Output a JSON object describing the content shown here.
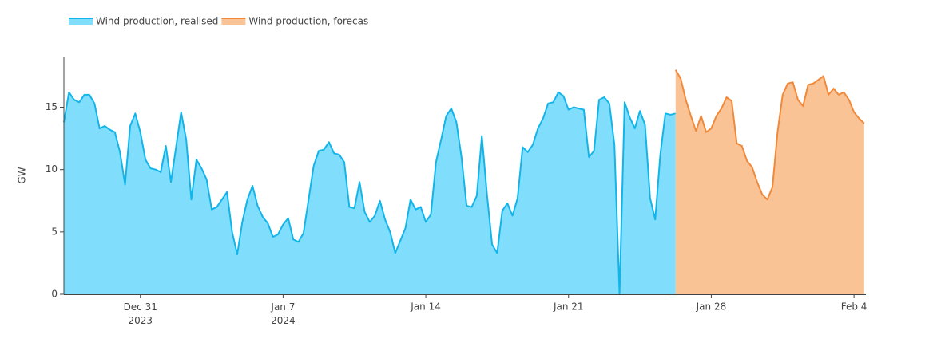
{
  "chart_data": {
    "type": "area",
    "y_label": "GW",
    "ylim": [
      0,
      19
    ],
    "yticks": [
      0,
      5,
      10,
      15
    ],
    "xlim": [
      "2023-12-27T06:00",
      "2024-02-04T14:00"
    ],
    "xticks": [
      {
        "value": "2023-12-31T00:00",
        "label": "Dec 31\n2023"
      },
      {
        "value": "2024-01-07T00:00",
        "label": "Jan 7\n2024"
      },
      {
        "value": "2024-01-14T00:00",
        "label": "Jan 14"
      },
      {
        "value": "2024-01-21T00:00",
        "label": "Jan 21"
      },
      {
        "value": "2024-01-28T00:00",
        "label": "Jan 28"
      },
      {
        "value": "2024-02-04T00:00",
        "label": "Feb 4"
      }
    ],
    "grid": false,
    "legend": "top-left",
    "x": [
      "2023-12-27T06:00",
      "2023-12-27T12:00",
      "2023-12-27T18:00",
      "2023-12-28T00:00",
      "2023-12-28T06:00",
      "2023-12-28T12:00",
      "2023-12-28T18:00",
      "2023-12-29T00:00",
      "2023-12-29T06:00",
      "2023-12-29T12:00",
      "2023-12-29T18:00",
      "2023-12-30T00:00",
      "2023-12-30T06:00",
      "2023-12-30T12:00",
      "2023-12-30T18:00",
      "2023-12-31T00:00",
      "2023-12-31T06:00",
      "2023-12-31T12:00",
      "2023-12-31T18:00",
      "2024-01-01T00:00",
      "2024-01-01T06:00",
      "2024-01-01T12:00",
      "2024-01-01T18:00",
      "2024-01-02T00:00",
      "2024-01-02T06:00",
      "2024-01-02T12:00",
      "2024-01-02T18:00",
      "2024-01-03T00:00",
      "2024-01-03T06:00",
      "2024-01-03T12:00",
      "2024-01-03T18:00",
      "2024-01-04T00:00",
      "2024-01-04T06:00",
      "2024-01-04T12:00",
      "2024-01-04T18:00",
      "2024-01-05T00:00",
      "2024-01-05T06:00",
      "2024-01-05T12:00",
      "2024-01-05T18:00",
      "2024-01-06T00:00",
      "2024-01-06T06:00",
      "2024-01-06T12:00",
      "2024-01-06T18:00",
      "2024-01-07T00:00",
      "2024-01-07T06:00",
      "2024-01-07T12:00",
      "2024-01-07T18:00",
      "2024-01-08T00:00",
      "2024-01-08T06:00",
      "2024-01-08T12:00",
      "2024-01-08T18:00",
      "2024-01-09T00:00",
      "2024-01-09T06:00",
      "2024-01-09T12:00",
      "2024-01-09T18:00",
      "2024-01-10T00:00",
      "2024-01-10T06:00",
      "2024-01-10T12:00",
      "2024-01-10T18:00",
      "2024-01-11T00:00",
      "2024-01-11T06:00",
      "2024-01-11T12:00",
      "2024-01-11T18:00",
      "2024-01-12T00:00",
      "2024-01-12T06:00",
      "2024-01-12T12:00",
      "2024-01-12T18:00",
      "2024-01-13T00:00",
      "2024-01-13T06:00",
      "2024-01-13T12:00",
      "2024-01-13T18:00",
      "2024-01-14T00:00",
      "2024-01-14T06:00",
      "2024-01-14T12:00",
      "2024-01-14T18:00",
      "2024-01-15T00:00",
      "2024-01-15T06:00",
      "2024-01-15T12:00",
      "2024-01-15T18:00",
      "2024-01-16T00:00",
      "2024-01-16T06:00",
      "2024-01-16T12:00",
      "2024-01-16T18:00",
      "2024-01-17T00:00",
      "2024-01-17T06:00",
      "2024-01-17T12:00",
      "2024-01-17T18:00",
      "2024-01-18T00:00",
      "2024-01-18T06:00",
      "2024-01-18T12:00",
      "2024-01-18T18:00",
      "2024-01-19T00:00",
      "2024-01-19T06:00",
      "2024-01-19T12:00",
      "2024-01-19T18:00",
      "2024-01-20T00:00",
      "2024-01-20T06:00",
      "2024-01-20T12:00",
      "2024-01-20T18:00",
      "2024-01-21T00:00",
      "2024-01-21T06:00",
      "2024-01-21T12:00",
      "2024-01-21T18:00",
      "2024-01-22T00:00",
      "2024-01-22T06:00",
      "2024-01-22T12:00",
      "2024-01-22T18:00",
      "2024-01-23T00:00",
      "2024-01-23T06:00",
      "2024-01-23T12:00",
      "2024-01-23T18:00",
      "2024-01-24T00:00",
      "2024-01-24T06:00",
      "2024-01-24T12:00",
      "2024-01-24T18:00",
      "2024-01-25T00:00",
      "2024-01-25T06:00",
      "2024-01-25T12:00",
      "2024-01-25T18:00",
      "2024-01-26T00:00",
      "2024-01-26T06:00",
      "2024-01-26T12:00",
      "2024-01-26T18:00",
      "2024-01-27T00:00",
      "2024-01-27T06:00",
      "2024-01-27T12:00",
      "2024-01-27T18:00",
      "2024-01-28T00:00",
      "2024-01-28T06:00",
      "2024-01-28T12:00",
      "2024-01-28T18:00",
      "2024-01-29T00:00",
      "2024-01-29T06:00",
      "2024-01-29T12:00",
      "2024-01-29T18:00",
      "2024-01-30T00:00",
      "2024-01-30T06:00",
      "2024-01-30T12:00",
      "2024-01-30T18:00",
      "2024-01-31T00:00",
      "2024-01-31T06:00",
      "2024-01-31T12:00",
      "2024-01-31T18:00",
      "2024-02-01T00:00",
      "2024-02-01T06:00",
      "2024-02-01T12:00",
      "2024-02-01T18:00",
      "2024-02-02T00:00",
      "2024-02-02T06:00",
      "2024-02-02T12:00",
      "2024-02-02T18:00",
      "2024-02-03T00:00",
      "2024-02-03T06:00",
      "2024-02-03T12:00",
      "2024-02-03T18:00",
      "2024-02-04T00:00",
      "2024-02-04T06:00",
      "2024-02-04T12:00"
    ],
    "series": [
      {
        "name": "Wind production, realised",
        "color": "#12b5ea",
        "fill": "#80ddfb",
        "values": [
          13.8,
          16.2,
          15.6,
          15.4,
          16.0,
          16.0,
          15.3,
          13.3,
          13.5,
          13.2,
          13.0,
          11.4,
          8.8,
          13.5,
          14.5,
          13.0,
          10.8,
          10.1,
          10.0,
          9.8,
          11.9,
          9.0,
          11.8,
          14.6,
          12.4,
          7.6,
          10.8,
          10.1,
          9.2,
          6.8,
          7.0,
          7.6,
          8.2,
          5.0,
          3.2,
          5.8,
          7.6,
          8.7,
          7.1,
          6.2,
          5.7,
          4.6,
          4.8,
          5.6,
          6.1,
          4.4,
          4.2,
          4.9,
          7.6,
          10.3,
          11.5,
          11.6,
          12.2,
          11.3,
          11.2,
          10.6,
          7.0,
          6.9,
          9.0,
          6.6,
          5.8,
          6.3,
          7.5,
          6.0,
          5.0,
          3.3,
          4.3,
          5.3,
          7.6,
          6.8,
          7.0,
          5.8,
          6.4,
          10.6,
          12.4,
          14.3,
          14.9,
          13.8,
          11.0,
          7.1,
          7.0,
          7.9,
          12.7,
          8.0,
          4.0,
          3.3,
          6.7,
          7.3,
          6.3,
          7.7,
          11.8,
          11.4,
          12.0,
          13.3,
          14.1,
          15.3,
          15.4,
          16.2,
          15.9,
          14.8,
          15.0,
          14.9,
          14.8,
          11.0,
          11.5,
          15.6,
          15.8,
          15.3,
          12.0,
          0,
          15.4,
          14.2,
          13.3,
          14.7,
          13.6,
          7.7,
          6.0,
          11.2,
          14.5,
          14.4,
          14.5,
          null,
          null,
          null,
          null,
          null,
          null,
          null,
          null,
          null,
          null,
          null,
          null,
          null,
          null,
          null,
          null,
          null,
          null,
          null,
          null,
          null,
          null,
          null,
          null,
          null,
          null,
          null,
          null,
          null,
          null,
          null,
          null,
          null,
          null,
          null,
          null,
          null
        ]
      },
      {
        "name": "Wind production, forecas",
        "color": "#f0893a",
        "fill": "#f9c396",
        "values": [
          null,
          null,
          null,
          null,
          null,
          null,
          null,
          null,
          null,
          null,
          null,
          null,
          null,
          null,
          null,
          null,
          null,
          null,
          null,
          null,
          null,
          null,
          null,
          null,
          null,
          null,
          null,
          null,
          null,
          null,
          null,
          null,
          null,
          null,
          null,
          null,
          null,
          null,
          null,
          null,
          null,
          null,
          null,
          null,
          null,
          null,
          null,
          null,
          null,
          null,
          null,
          null,
          null,
          null,
          null,
          null,
          null,
          null,
          null,
          null,
          null,
          null,
          null,
          null,
          null,
          null,
          null,
          null,
          null,
          null,
          null,
          null,
          null,
          null,
          null,
          null,
          null,
          null,
          null,
          null,
          null,
          null,
          null,
          null,
          null,
          null,
          null,
          null,
          null,
          null,
          null,
          null,
          null,
          null,
          null,
          null,
          null,
          null,
          null,
          null,
          null,
          null,
          null,
          null,
          null,
          null,
          null,
          null,
          null,
          null,
          null,
          null,
          null,
          null,
          null,
          null,
          null,
          null,
          null,
          null,
          18.0,
          17.3,
          15.6,
          14.3,
          13.1,
          14.3,
          13.0,
          13.3,
          14.3,
          14.9,
          15.8,
          15.5,
          12.1,
          11.9,
          10.7,
          10.2,
          9.0,
          8.0,
          7.6,
          8.6,
          13.0,
          16.0,
          16.9,
          17.0,
          15.6,
          15.1,
          16.8,
          16.9,
          17.2,
          17.5,
          16.0,
          16.5,
          16.0,
          16.2,
          15.6,
          14.6,
          14.1,
          13.7
        ]
      }
    ]
  }
}
